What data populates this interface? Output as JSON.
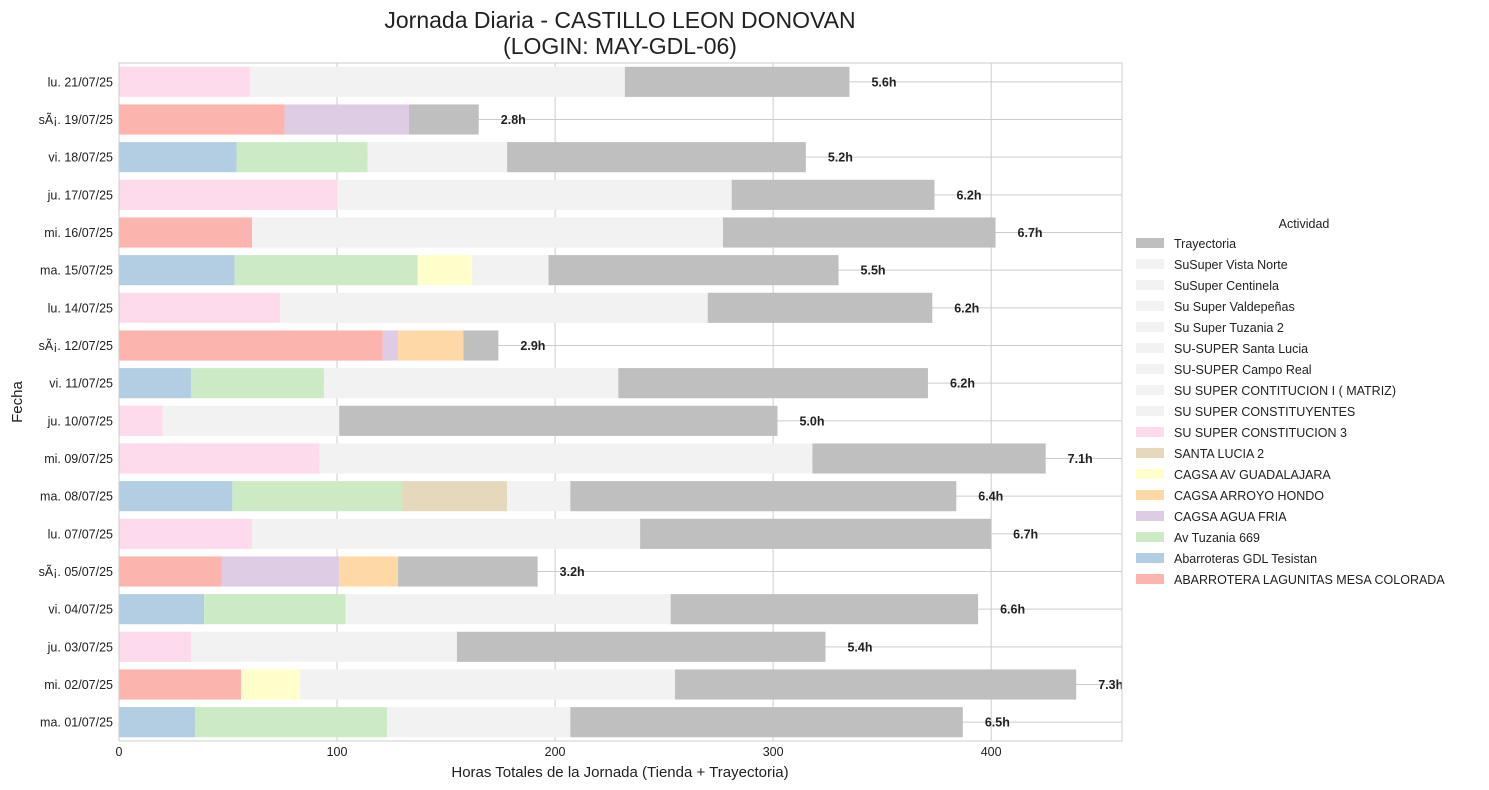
{
  "chart_data": {
    "type": "bar",
    "orientation": "horizontal",
    "stacked": true,
    "title": "Jornada Diaria - CASTILLO LEON DONOVAN",
    "subtitle": "(LOGIN: MAY-GDL-06)",
    "xlabel": "Horas Totales de la Jornada (Tienda + Trayectoria)",
    "ylabel": "Fecha",
    "xlim": [
      0,
      460
    ],
    "xticks": [
      "0",
      "100",
      "200",
      "300",
      "400"
    ],
    "grid": true,
    "legend": {
      "title": "Actividad",
      "placement": "right",
      "entries": [
        {
          "name": "Trayectoria",
          "color": "#bfbfbf"
        },
        {
          "name": "SuSuper Vista Norte",
          "color": "#f2f2f2"
        },
        {
          "name": "SuSuper Centinela",
          "color": "#f2f2f2"
        },
        {
          "name": "Su Super Valdepeñas",
          "color": "#f2f2f2"
        },
        {
          "name": "Su Super Tuzania 2",
          "color": "#f2f2f2"
        },
        {
          "name": "SU-SUPER Santa Lucia",
          "color": "#f2f2f2"
        },
        {
          "name": "SU-SUPER Campo Real",
          "color": "#f2f2f2"
        },
        {
          "name": "SU SUPER CONTITUCION I ( MATRIZ)",
          "color": "#f2f2f2"
        },
        {
          "name": "SU SUPER CONSTITUYENTES",
          "color": "#f2f2f2"
        },
        {
          "name": "SU SUPER CONSTITUCION 3",
          "color": "#fddaec"
        },
        {
          "name": "SANTA LUCIA 2",
          "color": "#e5d8bd"
        },
        {
          "name": "CAGSA AV GUADALAJARA",
          "color": "#ffffcc"
        },
        {
          "name": "CAGSA ARROYO HONDO",
          "color": "#fed9a6"
        },
        {
          "name": "CAGSA AGUA FRIA",
          "color": "#decbe4"
        },
        {
          "name": "Av Tuzania 669",
          "color": "#ccebc5"
        },
        {
          "name": "Abarroteras GDL Tesistan",
          "color": "#b3cde3"
        },
        {
          "name": "ABARROTERA LAGUNITAS MESA COLORADA",
          "color": "#fbb4ae"
        }
      ]
    },
    "rows": [
      {
        "date": "lu. 21/07/25",
        "total_label": "5.6h",
        "segments": [
          {
            "activity": "SU SUPER CONSTITUCION 3",
            "color": "#fddaec",
            "value": 60
          },
          {
            "activity": "SuSuper",
            "color": "#f2f2f2",
            "value": 172
          },
          {
            "activity": "Trayectoria",
            "color": "#bfbfbf",
            "value": 103
          }
        ]
      },
      {
        "date": "sÃ¡. 19/07/25",
        "total_label": "2.8h",
        "segments": [
          {
            "activity": "ABARROTERA LAGUNITAS MESA COLORADA",
            "color": "#fbb4ae",
            "value": 76
          },
          {
            "activity": "CAGSA AGUA FRIA",
            "color": "#decbe4",
            "value": 57
          },
          {
            "activity": "Trayectoria",
            "color": "#bfbfbf",
            "value": 32
          }
        ]
      },
      {
        "date": "vi. 18/07/25",
        "total_label": "5.2h",
        "segments": [
          {
            "activity": "Abarroteras GDL Tesistan",
            "color": "#b3cde3",
            "value": 54
          },
          {
            "activity": "Av Tuzania 669",
            "color": "#ccebc5",
            "value": 60
          },
          {
            "activity": "SuSuper",
            "color": "#f2f2f2",
            "value": 64
          },
          {
            "activity": "Trayectoria",
            "color": "#bfbfbf",
            "value": 137
          }
        ]
      },
      {
        "date": "ju. 17/07/25",
        "total_label": "6.2h",
        "segments": [
          {
            "activity": "SU SUPER CONSTITUCION 3",
            "color": "#fddaec",
            "value": 100
          },
          {
            "activity": "SuSuper",
            "color": "#f2f2f2",
            "value": 181
          },
          {
            "activity": "Trayectoria",
            "color": "#bfbfbf",
            "value": 93
          }
        ]
      },
      {
        "date": "mi. 16/07/25",
        "total_label": "6.7h",
        "segments": [
          {
            "activity": "ABARROTERA LAGUNITAS MESA COLORADA",
            "color": "#fbb4ae",
            "value": 61
          },
          {
            "activity": "SuSuper",
            "color": "#f2f2f2",
            "value": 216
          },
          {
            "activity": "Trayectoria",
            "color": "#bfbfbf",
            "value": 125
          }
        ]
      },
      {
        "date": "ma. 15/07/25",
        "total_label": "5.5h",
        "segments": [
          {
            "activity": "Abarroteras GDL Tesistan",
            "color": "#b3cde3",
            "value": 53
          },
          {
            "activity": "Av Tuzania 669",
            "color": "#ccebc5",
            "value": 84
          },
          {
            "activity": "CAGSA AV GUADALAJARA",
            "color": "#ffffcc",
            "value": 25
          },
          {
            "activity": "SuSuper",
            "color": "#f2f2f2",
            "value": 35
          },
          {
            "activity": "Trayectoria",
            "color": "#bfbfbf",
            "value": 133
          }
        ]
      },
      {
        "date": "lu. 14/07/25",
        "total_label": "6.2h",
        "segments": [
          {
            "activity": "SU SUPER CONSTITUCION 3",
            "color": "#fddaec",
            "value": 74
          },
          {
            "activity": "SuSuper",
            "color": "#f2f2f2",
            "value": 196
          },
          {
            "activity": "Trayectoria",
            "color": "#bfbfbf",
            "value": 103
          }
        ]
      },
      {
        "date": "sÃ¡. 12/07/25",
        "total_label": "2.9h",
        "segments": [
          {
            "activity": "ABARROTERA LAGUNITAS MESA COLORADA",
            "color": "#fbb4ae",
            "value": 121
          },
          {
            "activity": "CAGSA AGUA FRIA",
            "color": "#decbe4",
            "value": 7
          },
          {
            "activity": "CAGSA ARROYO HONDO",
            "color": "#fed9a6",
            "value": 30
          },
          {
            "activity": "Trayectoria",
            "color": "#bfbfbf",
            "value": 16
          }
        ]
      },
      {
        "date": "vi. 11/07/25",
        "total_label": "6.2h",
        "segments": [
          {
            "activity": "Abarroteras GDL Tesistan",
            "color": "#b3cde3",
            "value": 33
          },
          {
            "activity": "Av Tuzania 669",
            "color": "#ccebc5",
            "value": 61
          },
          {
            "activity": "SuSuper",
            "color": "#f2f2f2",
            "value": 135
          },
          {
            "activity": "Trayectoria",
            "color": "#bfbfbf",
            "value": 142
          }
        ]
      },
      {
        "date": "ju. 10/07/25",
        "total_label": "5.0h",
        "segments": [
          {
            "activity": "SU SUPER CONSTITUCION 3",
            "color": "#fddaec",
            "value": 20
          },
          {
            "activity": "SuSuper",
            "color": "#f2f2f2",
            "value": 81
          },
          {
            "activity": "Trayectoria",
            "color": "#bfbfbf",
            "value": 201
          }
        ]
      },
      {
        "date": "mi. 09/07/25",
        "total_label": "7.1h",
        "segments": [
          {
            "activity": "SU SUPER CONSTITUCION 3",
            "color": "#fddaec",
            "value": 92
          },
          {
            "activity": "SuSuper",
            "color": "#f2f2f2",
            "value": 226
          },
          {
            "activity": "Trayectoria",
            "color": "#bfbfbf",
            "value": 107
          }
        ]
      },
      {
        "date": "ma. 08/07/25",
        "total_label": "6.4h",
        "segments": [
          {
            "activity": "Abarroteras GDL Tesistan",
            "color": "#b3cde3",
            "value": 52
          },
          {
            "activity": "Av Tuzania 669",
            "color": "#ccebc5",
            "value": 78
          },
          {
            "activity": "SANTA LUCIA 2",
            "color": "#e5d8bd",
            "value": 48
          },
          {
            "activity": "SuSuper",
            "color": "#f2f2f2",
            "value": 29
          },
          {
            "activity": "Trayectoria",
            "color": "#bfbfbf",
            "value": 177
          }
        ]
      },
      {
        "date": "lu. 07/07/25",
        "total_label": "6.7h",
        "segments": [
          {
            "activity": "SU SUPER CONSTITUCION 3",
            "color": "#fddaec",
            "value": 61
          },
          {
            "activity": "SuSuper",
            "color": "#f2f2f2",
            "value": 178
          },
          {
            "activity": "Trayectoria",
            "color": "#bfbfbf",
            "value": 161
          }
        ]
      },
      {
        "date": "sÃ¡. 05/07/25",
        "total_label": "3.2h",
        "segments": [
          {
            "activity": "ABARROTERA LAGUNITAS MESA COLORADA",
            "color": "#fbb4ae",
            "value": 47
          },
          {
            "activity": "CAGSA AGUA FRIA",
            "color": "#decbe4",
            "value": 54
          },
          {
            "activity": "CAGSA ARROYO HONDO",
            "color": "#fed9a6",
            "value": 27
          },
          {
            "activity": "Trayectoria",
            "color": "#bfbfbf",
            "value": 64
          }
        ]
      },
      {
        "date": "vi. 04/07/25",
        "total_label": "6.6h",
        "segments": [
          {
            "activity": "Abarroteras GDL Tesistan",
            "color": "#b3cde3",
            "value": 39
          },
          {
            "activity": "Av Tuzania 669",
            "color": "#ccebc5",
            "value": 65
          },
          {
            "activity": "SuSuper",
            "color": "#f2f2f2",
            "value": 149
          },
          {
            "activity": "Trayectoria",
            "color": "#bfbfbf",
            "value": 141
          }
        ]
      },
      {
        "date": "ju. 03/07/25",
        "total_label": "5.4h",
        "segments": [
          {
            "activity": "SU SUPER CONSTITUCION 3",
            "color": "#fddaec",
            "value": 33
          },
          {
            "activity": "SuSuper",
            "color": "#f2f2f2",
            "value": 122
          },
          {
            "activity": "Trayectoria",
            "color": "#bfbfbf",
            "value": 169
          }
        ]
      },
      {
        "date": "mi. 02/07/25",
        "total_label": "7.3h",
        "segments": [
          {
            "activity": "ABARROTERA LAGUNITAS MESA COLORADA",
            "color": "#fbb4ae",
            "value": 56
          },
          {
            "activity": "CAGSA AV GUADALAJARA",
            "color": "#ffffcc",
            "value": 27
          },
          {
            "activity": "SuSuper",
            "color": "#f2f2f2",
            "value": 172
          },
          {
            "activity": "Trayectoria",
            "color": "#bfbfbf",
            "value": 184
          }
        ]
      },
      {
        "date": "ma. 01/07/25",
        "total_label": "6.5h",
        "segments": [
          {
            "activity": "Abarroteras GDL Tesistan",
            "color": "#b3cde3",
            "value": 35
          },
          {
            "activity": "Av Tuzania 669",
            "color": "#ccebc5",
            "value": 88
          },
          {
            "activity": "SuSuper",
            "color": "#f2f2f2",
            "value": 84
          },
          {
            "activity": "Trayectoria",
            "color": "#bfbfbf",
            "value": 180
          }
        ]
      }
    ]
  }
}
